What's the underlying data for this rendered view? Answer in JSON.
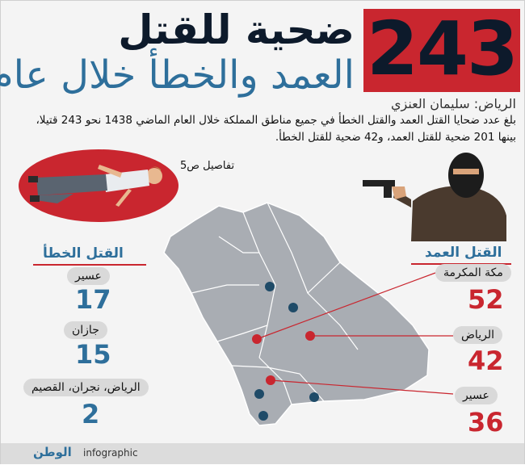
{
  "header": {
    "number": "243",
    "title_line1": "ضحية للقتل",
    "title_line2": "العمد والخطأ خلال عام"
  },
  "byline": "الرياض: سليمان العنزي",
  "summary": "بلغ عدد ضحايا القتل العمد والقتل الخطأ في جميع مناطق المملكة خلال العام الماضي 1438 نحو 243 قتيلا، بينها 201 ضحية للقتل العمد، و42 ضحية للقتل الخطأ.",
  "details_ref": "تفاصيل ص5",
  "unintentional": {
    "title": "القتل الخطأ",
    "items": [
      {
        "region": "عسير",
        "value": "17"
      },
      {
        "region": "جازان",
        "value": "15"
      },
      {
        "region": "الرياض، نجران، القصيم",
        "value": "2"
      }
    ]
  },
  "intentional": {
    "title": "القتل العمد",
    "items": [
      {
        "region": "مكة المكرمة",
        "value": "52"
      },
      {
        "region": "الرياض",
        "value": "42"
      },
      {
        "region": "عسير",
        "value": "36"
      }
    ]
  },
  "footer": {
    "logo": "الوطن",
    "label": "infographic"
  },
  "colors": {
    "red": "#c9262f",
    "blue": "#2e6f9b",
    "navy": "#0d1a2b",
    "map_fill": "#a9adb3"
  }
}
